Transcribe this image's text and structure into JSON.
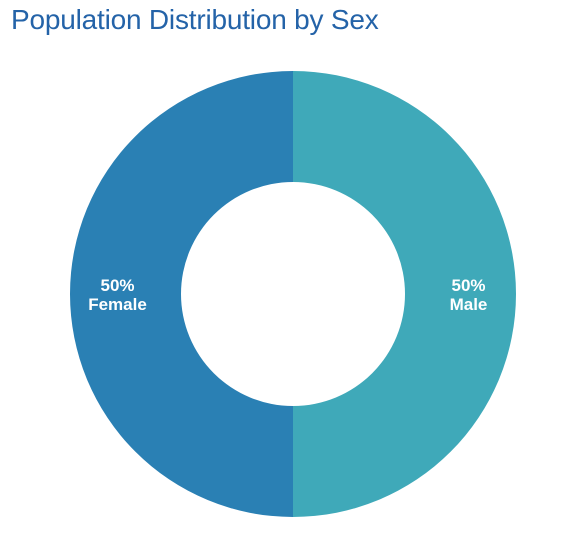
{
  "chart_data": {
    "type": "pie",
    "title": "Population Distribution by Sex",
    "donut": true,
    "slices": [
      {
        "label": "Male",
        "value": 50,
        "display_value": "50%",
        "color": "#3fa9b9"
      },
      {
        "label": "Female",
        "value": 50,
        "display_value": "50%",
        "color": "#2a80b4"
      }
    ],
    "start_angle_deg": 0,
    "direction": "clockwise",
    "legend": "none",
    "title_color": "#2463a8"
  }
}
